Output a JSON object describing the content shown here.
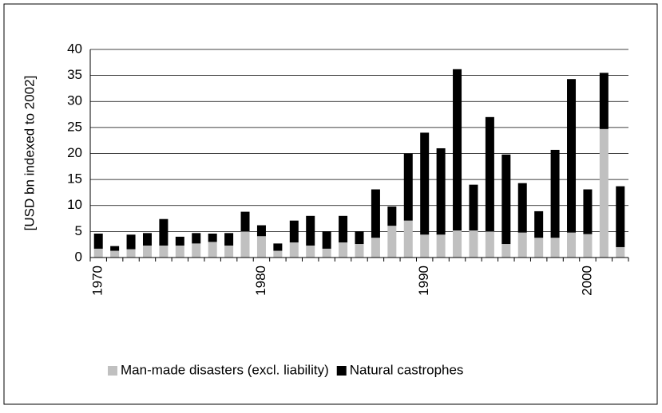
{
  "chart_data": {
    "type": "stacked-bar",
    "y_label": "[USD bn indexed to 2002]",
    "categories": [
      "1970",
      null,
      null,
      null,
      null,
      null,
      null,
      null,
      null,
      null,
      "1980",
      null,
      null,
      null,
      null,
      null,
      null,
      null,
      null,
      null,
      "1990",
      null,
      null,
      null,
      null,
      null,
      null,
      null,
      null,
      null,
      "2000",
      null,
      null
    ],
    "series": [
      {
        "name": "Man-made disasters (excl. liability)",
        "color": "#c0c0c0",
        "values": [
          1.7,
          1.3,
          1.6,
          2.3,
          2.3,
          2.3,
          2.7,
          3.0,
          2.3,
          5.0,
          4.1,
          1.3,
          2.9,
          2.3,
          1.7,
          2.9,
          2.6,
          3.8,
          6.1,
          7.1,
          4.4,
          4.4,
          5.2,
          5.2,
          5.0,
          2.6,
          4.8,
          3.8,
          3.8,
          4.8,
          4.5,
          24.7,
          2.0
        ]
      },
      {
        "name": "Natural castrophes",
        "color": "#000000",
        "values": [
          2.9,
          0.9,
          2.8,
          2.4,
          5.1,
          1.7,
          2.0,
          1.6,
          2.4,
          3.8,
          2.1,
          1.4,
          4.2,
          5.7,
          3.3,
          5.1,
          2.4,
          9.3,
          3.7,
          12.9,
          19.6,
          16.6,
          31.0,
          8.8,
          22.0,
          17.2,
          9.5,
          5.1,
          16.9,
          29.5,
          8.6,
          10.8,
          11.7
        ]
      }
    ],
    "ylim": [
      0,
      40
    ],
    "yticks": [
      0,
      5,
      10,
      15,
      20,
      25,
      30,
      35,
      40
    ],
    "grid": true,
    "legend": "bottom"
  }
}
